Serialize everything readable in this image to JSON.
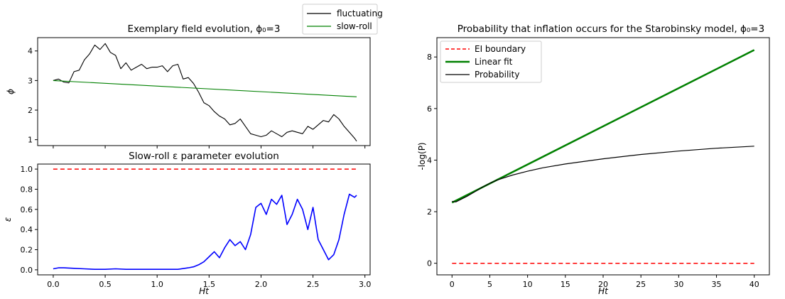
{
  "chart_data": [
    {
      "id": "field",
      "type": "line",
      "title": "Exemplary field evolution, ϕ₀=3",
      "xlabel": "",
      "ylabel": "ϕ",
      "xlim": [
        -0.15,
        3.05
      ],
      "ylim": [
        0.8,
        4.45
      ],
      "xticks": [
        0,
        0.5,
        1,
        1.5,
        2,
        2.5,
        3
      ],
      "xtick_labels": [
        "",
        "",
        "",
        "",
        "",
        "",
        ""
      ],
      "yticks": [
        1,
        2,
        3,
        4
      ],
      "ytick_labels": [
        "1",
        "2",
        "3",
        "4"
      ],
      "grid": false,
      "legend": {
        "placement": "outside-top-right",
        "entries": [
          "fluctuating",
          "slow-roll"
        ]
      },
      "series": [
        {
          "name": "fluctuating",
          "color": "#000000",
          "x": [
            0.0,
            0.05,
            0.1,
            0.15,
            0.2,
            0.25,
            0.3,
            0.35,
            0.4,
            0.45,
            0.5,
            0.55,
            0.6,
            0.65,
            0.7,
            0.75,
            0.8,
            0.85,
            0.9,
            0.95,
            1.0,
            1.05,
            1.1,
            1.15,
            1.2,
            1.25,
            1.3,
            1.35,
            1.4,
            1.45,
            1.5,
            1.55,
            1.6,
            1.65,
            1.7,
            1.75,
            1.8,
            1.85,
            1.9,
            1.95,
            2.0,
            2.05,
            2.1,
            2.15,
            2.2,
            2.25,
            2.3,
            2.35,
            2.4,
            2.45,
            2.5,
            2.55,
            2.6,
            2.65,
            2.7,
            2.75,
            2.8,
            2.85,
            2.9,
            2.92
          ],
          "y": [
            3.0,
            3.05,
            2.95,
            2.92,
            3.3,
            3.35,
            3.7,
            3.9,
            4.2,
            4.05,
            4.25,
            3.95,
            3.85,
            3.4,
            3.6,
            3.35,
            3.45,
            3.55,
            3.4,
            3.45,
            3.45,
            3.5,
            3.3,
            3.5,
            3.55,
            3.05,
            3.1,
            2.9,
            2.6,
            2.25,
            2.15,
            1.95,
            1.8,
            1.7,
            1.5,
            1.55,
            1.7,
            1.45,
            1.2,
            1.15,
            1.1,
            1.15,
            1.3,
            1.2,
            1.1,
            1.25,
            1.3,
            1.25,
            1.2,
            1.45,
            1.35,
            1.5,
            1.65,
            1.6,
            1.85,
            1.7,
            1.45,
            1.25,
            1.05,
            0.95
          ]
        },
        {
          "name": "slow-roll",
          "color": "#008000",
          "x": [
            0.0,
            2.92
          ],
          "y": [
            3.0,
            2.45
          ]
        }
      ]
    },
    {
      "id": "epsilon",
      "type": "line",
      "title": "Slow-roll ε parameter evolution",
      "xlabel": "Ht",
      "ylabel": "ε",
      "xlim": [
        -0.15,
        3.05
      ],
      "ylim": [
        -0.05,
        1.05
      ],
      "xticks": [
        0,
        0.5,
        1,
        1.5,
        2,
        2.5,
        3
      ],
      "xtick_labels": [
        "0.0",
        "0.5",
        "1.0",
        "1.5",
        "2.0",
        "2.5",
        "3.0"
      ],
      "yticks": [
        0,
        0.2,
        0.4,
        0.6,
        0.8,
        1.0
      ],
      "ytick_labels": [
        "0.0",
        "0.2",
        "0.4",
        "0.6",
        "0.8",
        "1.0"
      ],
      "grid": false,
      "series": [
        {
          "color": "#ff0000",
          "dashed": true,
          "x": [
            0.0,
            2.92
          ],
          "y": [
            1.0,
            1.0
          ]
        },
        {
          "color": "#0000ff",
          "x": [
            0.0,
            0.05,
            0.1,
            0.2,
            0.3,
            0.4,
            0.5,
            0.6,
            0.7,
            0.8,
            0.9,
            1.0,
            1.1,
            1.2,
            1.3,
            1.35,
            1.4,
            1.45,
            1.5,
            1.55,
            1.6,
            1.65,
            1.7,
            1.75,
            1.8,
            1.85,
            1.9,
            1.95,
            2.0,
            2.05,
            2.1,
            2.15,
            2.2,
            2.25,
            2.3,
            2.35,
            2.4,
            2.45,
            2.5,
            2.55,
            2.6,
            2.65,
            2.7,
            2.75,
            2.8,
            2.85,
            2.9,
            2.92
          ],
          "y": [
            0.01,
            0.02,
            0.02,
            0.015,
            0.01,
            0.005,
            0.005,
            0.01,
            0.005,
            0.005,
            0.005,
            0.005,
            0.005,
            0.005,
            0.02,
            0.03,
            0.05,
            0.08,
            0.13,
            0.18,
            0.12,
            0.22,
            0.3,
            0.24,
            0.28,
            0.2,
            0.35,
            0.62,
            0.66,
            0.55,
            0.7,
            0.65,
            0.74,
            0.45,
            0.55,
            0.7,
            0.6,
            0.4,
            0.62,
            0.3,
            0.2,
            0.1,
            0.15,
            0.3,
            0.55,
            0.75,
            0.72,
            0.74
          ]
        }
      ]
    },
    {
      "id": "probability",
      "type": "line",
      "title": "Probability that inflation occurs for the Starobinsky model, ϕ₀=3",
      "xlabel": "Ht",
      "ylabel": "-log(P)",
      "xlim": [
        -2,
        42
      ],
      "ylim": [
        -0.45,
        8.75
      ],
      "xticks": [
        0,
        5,
        10,
        15,
        20,
        25,
        30,
        35,
        40
      ],
      "xtick_labels": [
        "0",
        "5",
        "10",
        "15",
        "20",
        "25",
        "30",
        "35",
        "40"
      ],
      "yticks": [
        0,
        2,
        4,
        6,
        8
      ],
      "ytick_labels": [
        "0",
        "2",
        "4",
        "6",
        "8"
      ],
      "grid": false,
      "legend": {
        "placement": "upper-left",
        "entries": [
          "EI boundary",
          "Linear fit",
          "Probability"
        ]
      },
      "series": [
        {
          "name": "EI boundary",
          "color": "#ff0000",
          "dashed": true,
          "x": [
            0,
            40
          ],
          "y": [
            0,
            0
          ]
        },
        {
          "name": "Linear fit",
          "color": "#008000",
          "x": [
            0,
            40
          ],
          "y": [
            2.35,
            8.27
          ]
        },
        {
          "name": "Probability",
          "color": "#000000",
          "x": [
            0,
            0.5,
            1,
            2,
            3,
            4,
            5,
            6,
            8,
            10,
            12,
            15,
            20,
            25,
            30,
            35,
            40
          ],
          "y": [
            2.4,
            2.38,
            2.45,
            2.6,
            2.77,
            2.95,
            3.1,
            3.23,
            3.42,
            3.57,
            3.7,
            3.85,
            4.05,
            4.22,
            4.35,
            4.46,
            4.54
          ]
        }
      ]
    }
  ]
}
